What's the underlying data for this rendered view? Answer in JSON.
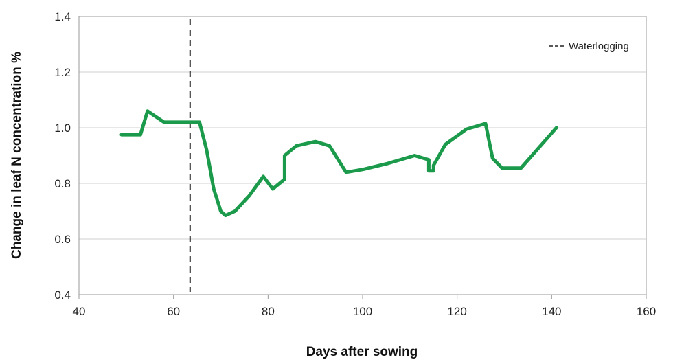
{
  "chart_data": {
    "type": "line",
    "title": "",
    "xlabel": "Days after sowing",
    "ylabel": "Change in leaf N concentration %",
    "xlim": [
      40,
      160
    ],
    "ylim": [
      0.4,
      1.4
    ],
    "x_ticks": [
      "40",
      "60",
      "80",
      "100",
      "120",
      "140",
      "160"
    ],
    "y_ticks": [
      "0.4",
      "0.6",
      "0.8",
      "1.0",
      "1.2",
      "1.4"
    ],
    "grid": true,
    "legend_position": "top-right",
    "legend": {
      "waterlogging_label": "Waterlogging"
    },
    "series": [
      {
        "color": "#1a9a4a",
        "points": [
          [
            49,
            0.975
          ],
          [
            53,
            0.975
          ],
          [
            54.5,
            1.06
          ],
          [
            58,
            1.02
          ],
          [
            63,
            1.02
          ],
          [
            65.5,
            1.02
          ],
          [
            67,
            0.92
          ],
          [
            68.5,
            0.78
          ],
          [
            70,
            0.7
          ],
          [
            71,
            0.685
          ],
          [
            73,
            0.7
          ],
          [
            76,
            0.755
          ],
          [
            79,
            0.825
          ],
          [
            81,
            0.78
          ],
          [
            83.5,
            0.815
          ],
          [
            83.5,
            0.9
          ],
          [
            86,
            0.935
          ],
          [
            90,
            0.95
          ],
          [
            93,
            0.935
          ],
          [
            96.5,
            0.84
          ],
          [
            100,
            0.85
          ],
          [
            105,
            0.87
          ],
          [
            111,
            0.9
          ],
          [
            114,
            0.885
          ],
          [
            114,
            0.845
          ],
          [
            115,
            0.845
          ],
          [
            115,
            0.865
          ],
          [
            117.5,
            0.94
          ],
          [
            122,
            0.995
          ],
          [
            126,
            1.015
          ],
          [
            127.5,
            0.89
          ],
          [
            129.5,
            0.855
          ],
          [
            133.5,
            0.855
          ],
          [
            141,
            1.0
          ]
        ]
      }
    ],
    "waterlogging_x": 63.5
  }
}
